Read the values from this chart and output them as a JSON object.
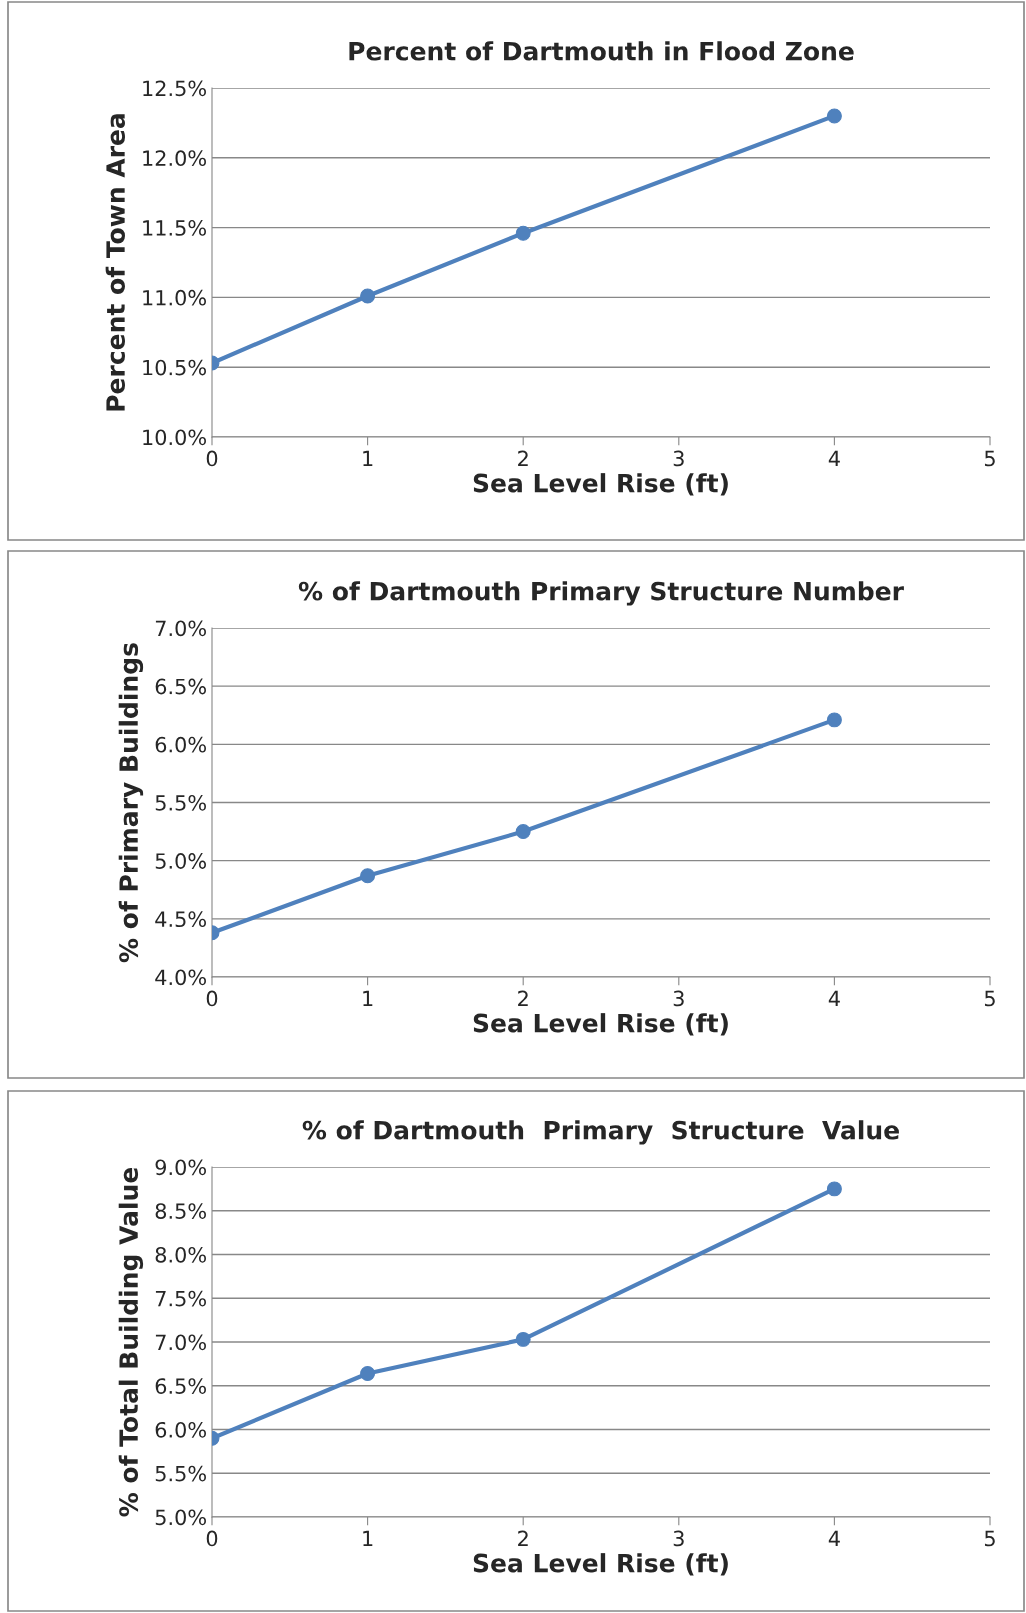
{
  "chart_data": [
    {
      "type": "line",
      "title": "Percent of Dartmouth in Flood Zone",
      "xlabel": "Sea Level Rise (ft)",
      "ylabel": "Percent of Town Area",
      "x": [
        0,
        1,
        2,
        4
      ],
      "series": [
        {
          "color": "#4f81bd",
          "values": [
            10.53,
            11.01,
            11.46,
            12.3
          ]
        }
      ],
      "xlim": [
        0,
        5
      ],
      "xticks": [
        0,
        1,
        2,
        3,
        4,
        5
      ],
      "ylim": [
        10.0,
        12.5
      ],
      "yticks": [
        {
          "value": 10.0,
          "label": "10.0%"
        },
        {
          "value": 10.5,
          "label": "10.5%"
        },
        {
          "value": 11.0,
          "label": "11.0%"
        },
        {
          "value": 11.5,
          "label": "11.5%"
        },
        {
          "value": 12.0,
          "label": "12.0%"
        },
        {
          "value": 12.5,
          "label": "12.5%"
        }
      ],
      "grid": "y",
      "marker": "circle",
      "line_style": "solid"
    },
    {
      "type": "line",
      "title": "% of Dartmouth Primary Structure Number",
      "xlabel": "Sea Level Rise (ft)",
      "ylabel": "% of Primary Buildings",
      "x": [
        0,
        1,
        2,
        4
      ],
      "series": [
        {
          "color": "#4f81bd",
          "values": [
            4.38,
            4.87,
            5.25,
            6.21
          ]
        }
      ],
      "xlim": [
        0,
        5
      ],
      "xticks": [
        0,
        1,
        2,
        3,
        4,
        5
      ],
      "ylim": [
        4.0,
        7.0
      ],
      "yticks": [
        {
          "value": 4.0,
          "label": "4.0%"
        },
        {
          "value": 4.5,
          "label": "4.5%"
        },
        {
          "value": 5.0,
          "label": "5.0%"
        },
        {
          "value": 5.5,
          "label": "5.5%"
        },
        {
          "value": 6.0,
          "label": "6.0%"
        },
        {
          "value": 6.5,
          "label": "6.5%"
        },
        {
          "value": 7.0,
          "label": "7.0%"
        }
      ],
      "grid": "y",
      "marker": "circle",
      "line_style": "solid"
    },
    {
      "type": "line",
      "title": "% of Dartmouth  Primary  Structure  Value",
      "xlabel": "Sea Level Rise (ft)",
      "ylabel": "% of Total Building Value",
      "x": [
        0,
        1,
        2,
        4
      ],
      "series": [
        {
          "color": "#4f81bd",
          "values": [
            5.9,
            6.64,
            7.03,
            8.75
          ]
        }
      ],
      "xlim": [
        0,
        5
      ],
      "xticks": [
        0,
        1,
        2,
        3,
        4,
        5
      ],
      "ylim": [
        5.0,
        9.0
      ],
      "yticks": [
        {
          "value": 5.0,
          "label": "5.0%"
        },
        {
          "value": 5.5,
          "label": "5.5%"
        },
        {
          "value": 6.0,
          "label": "6.0%"
        },
        {
          "value": 6.5,
          "label": "6.5%"
        },
        {
          "value": 7.0,
          "label": "7.0%"
        },
        {
          "value": 7.5,
          "label": "7.5%"
        },
        {
          "value": 8.0,
          "label": "8.0%"
        },
        {
          "value": 8.5,
          "label": "8.5%"
        },
        {
          "value": 9.0,
          "label": "9.0%"
        }
      ],
      "grid": "y",
      "marker": "circle",
      "line_style": "solid"
    }
  ]
}
